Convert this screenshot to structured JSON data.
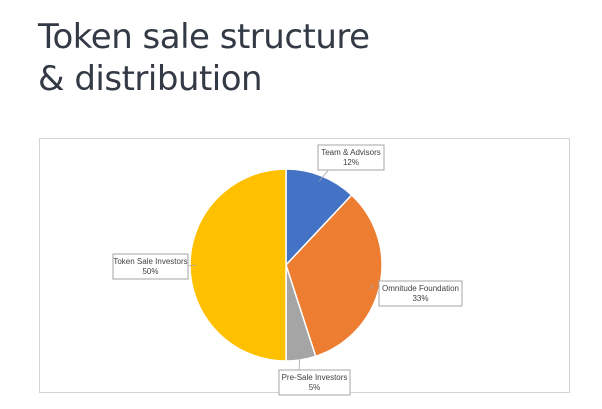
{
  "header": {
    "title_line1": "Token sale structure",
    "title_line2": "& distribution"
  },
  "chart_data": {
    "type": "pie",
    "title": "",
    "start_angle_deg": 0,
    "direction": "clockwise",
    "slices": [
      {
        "label": "Team & Advisors",
        "value": 12,
        "value_label": "12%",
        "color": "#4472c4"
      },
      {
        "label": "Omnitude Foundation",
        "value": 33,
        "value_label": "33%",
        "color": "#ed7d31"
      },
      {
        "label": "Pre-Sale Investors",
        "value": 5,
        "value_label": "5%",
        "color": "#a5a5a5"
      },
      {
        "label": "Token Sale Investors",
        "value": 50,
        "value_label": "50%",
        "color": "#ffc000"
      }
    ],
    "legend": "none",
    "data_labels": "callouts"
  }
}
